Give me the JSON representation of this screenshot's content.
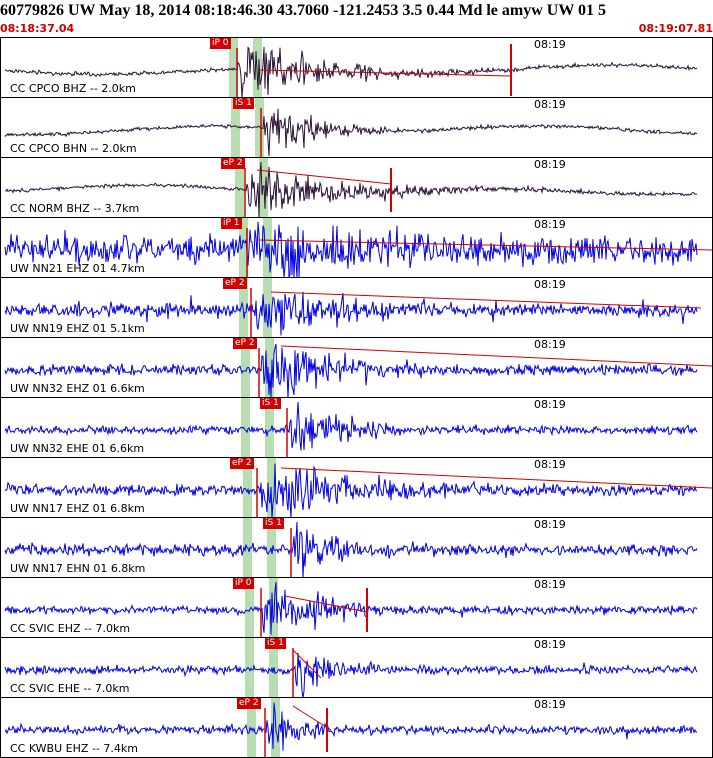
{
  "header": {
    "title": "60779826 UW May 18, 2014 08:18:46.30   43.7060 -121.2453  3.5 0.44 Md le amyw UW 01   5",
    "start_time": "08:18:37.04",
    "end_time": "08:19:07.81"
  },
  "colors": {
    "pick": "#d40000",
    "window_band": "#b8ddb0",
    "trace_dark": "#2a1238",
    "trace_blue": "#0000e6",
    "envelope": "#d40000"
  },
  "traces": [
    {
      "label": "CC CPCO BHZ -- 2.0km",
      "time": "08:19",
      "pick": "iP 0",
      "color": "dark"
    },
    {
      "label": "CC CPCO BHN -- 2.0km",
      "time": "08:19",
      "pick": "iS 1",
      "color": "dark"
    },
    {
      "label": "CC NORM BHZ -- 3.7km",
      "time": "08:19",
      "pick": "eP 2",
      "color": "dark"
    },
    {
      "label": "UW NN21 EHZ 01 4.7km",
      "time": "08:19",
      "pick": "iP 1",
      "color": "blue"
    },
    {
      "label": "UW NN19 EHZ 01 5.1km",
      "time": "08:19",
      "pick": "eP 2",
      "color": "blue"
    },
    {
      "label": "UW NN32 EHZ 01 6.6km",
      "time": "08:19",
      "pick": "eP 2",
      "color": "blue"
    },
    {
      "label": "UW NN32 EHE 01 6.6km",
      "time": "08:19",
      "pick": "iS 1",
      "color": "blue"
    },
    {
      "label": "UW NN17 EHZ 01 6.8km",
      "time": "08:19",
      "pick": "eP 2",
      "color": "blue"
    },
    {
      "label": "UW NN17 EHN 01 6.8km",
      "time": "08:19",
      "pick": "iS 1",
      "color": "blue"
    },
    {
      "label": "CC SVIC EHZ -- 7.0km",
      "time": "08:19",
      "pick": "iP 0",
      "color": "blue"
    },
    {
      "label": "CC SVIC EHE -- 7.0km",
      "time": "08:19",
      "pick": "iS 1",
      "color": "blue"
    },
    {
      "label": "CC KWBU EHZ -- 7.4km",
      "time": "08:19",
      "pick": "eP 2",
      "color": "blue"
    }
  ]
}
